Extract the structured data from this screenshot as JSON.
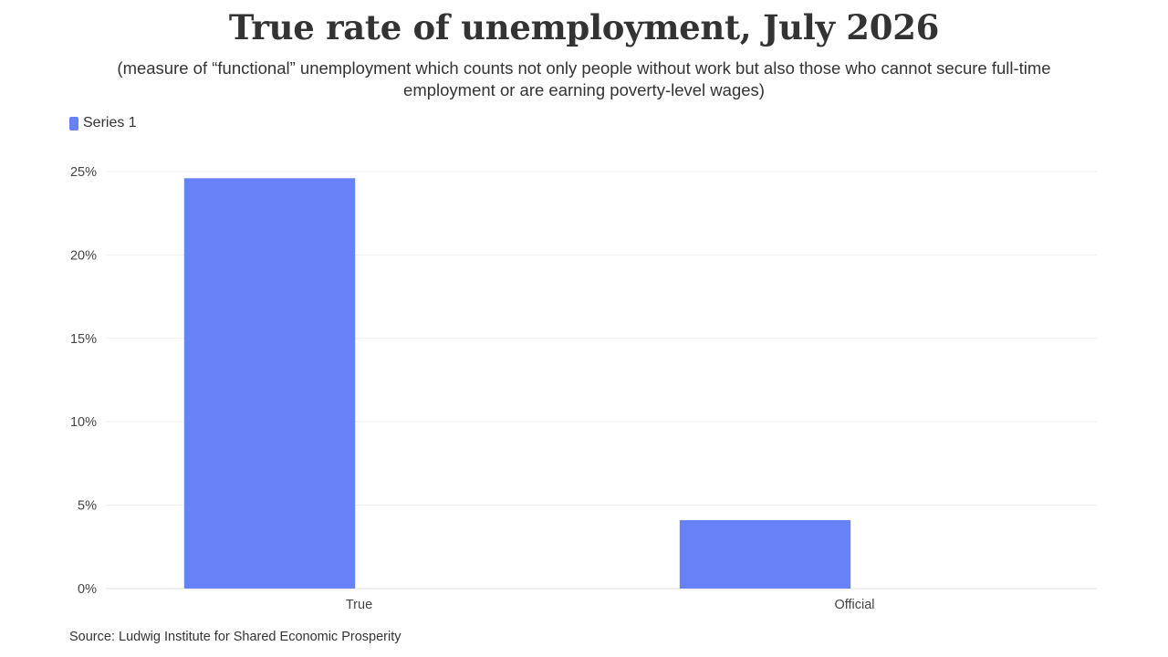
{
  "chart_data": {
    "type": "bar",
    "title": "True rate of unemployment, July 2026",
    "subtitle": "(measure of “functional” unemployment which counts not only people without work but also those who cannot secure full-time employment or are earning poverty-level wages)",
    "categories": [
      "True",
      "Official"
    ],
    "series": [
      {
        "name": "Series 1",
        "values": [
          24.6,
          4.1
        ],
        "color": "#6781f7"
      }
    ],
    "xlabel": "",
    "ylabel": "",
    "ylim": [
      0,
      25
    ],
    "yticks": [
      "0%",
      "5%",
      "10%",
      "15%",
      "20%",
      "25%"
    ],
    "ytick_values": [
      0,
      5,
      10,
      15,
      20,
      25
    ],
    "grid": true,
    "legend_position": "top-left",
    "source": "Source: Ludwig Institute for Shared Economic Prosperity"
  }
}
